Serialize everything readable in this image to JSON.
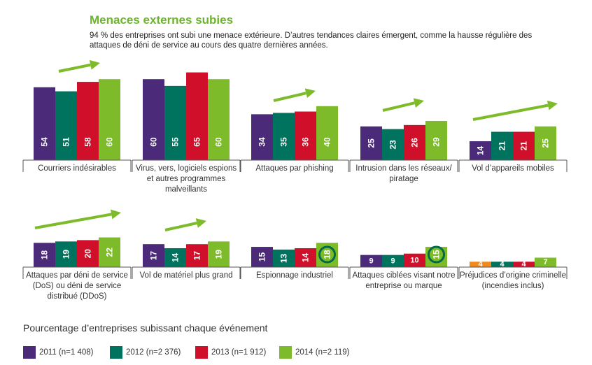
{
  "header": {
    "title": "Menaces externes subies",
    "description": "94 % des entreprises ont subi une menace extérieure. D’autres tendances claires émergent, comme la hausse régulière des attaques de déni de service au cours des quatre dernières années."
  },
  "caption": "Pourcentage d’entreprises subissant chaque événement",
  "colors": {
    "y2011": "#4b2a7a",
    "y2012": "#00735e",
    "y2013": "#d0102a",
    "y2014": "#7dbb2a",
    "trend": "#7dbb2a",
    "circle": "#006b46",
    "prej2011": "#f08a1c"
  },
  "legend": [
    {
      "label": "2011 (n=1 408)",
      "color": "#4b2a7a"
    },
    {
      "label": "2012 (n=2 376)",
      "color": "#00735e"
    },
    {
      "label": "2013 (n=1 912)",
      "color": "#d0102a"
    },
    {
      "label": "2014 (n=2 119)",
      "color": "#7dbb2a"
    }
  ],
  "chart_data": {
    "type": "bar",
    "series_names": [
      "2011 (n=1 408)",
      "2012 (n=2 376)",
      "2013 (n=1 912)",
      "2014 (n=2 119)"
    ],
    "groups": [
      {
        "label": "Courriers indésirables",
        "values": [
          54,
          51,
          58,
          60
        ],
        "trend": true
      },
      {
        "label": "Virus, vers, logiciels espions et autres programmes malveillants",
        "values": [
          60,
          55,
          65,
          60
        ],
        "trend": false
      },
      {
        "label": "Attaques par phishing",
        "values": [
          34,
          35,
          36,
          40
        ],
        "trend": true
      },
      {
        "label": "Intrusion dans les réseaux/ piratage",
        "values": [
          25,
          23,
          26,
          29
        ],
        "trend": true
      },
      {
        "label": "Vol d’appareils mobiles",
        "values": [
          14,
          21,
          21,
          25
        ],
        "trend": true
      },
      {
        "label": "Attaques par déni de service (DoS) ou déni de service distribué (DDoS)",
        "values": [
          18,
          19,
          20,
          22
        ],
        "trend": true
      },
      {
        "label": "Vol de matériel plus grand",
        "values": [
          17,
          14,
          17,
          19
        ],
        "trend": true
      },
      {
        "label": "Espionnage industriel",
        "values": [
          15,
          13,
          14,
          18
        ],
        "trend": false,
        "highlight": 3
      },
      {
        "label": "Attaques ciblées visant notre entreprise ou marque",
        "values": [
          9,
          9,
          10,
          15
        ],
        "trend": false,
        "highlight": 3
      },
      {
        "label": "Préjudices d’origine criminelle (incendies inclus)",
        "values": [
          4,
          4,
          4,
          7
        ],
        "trend": false,
        "first_color": "#f08a1c"
      }
    ]
  }
}
